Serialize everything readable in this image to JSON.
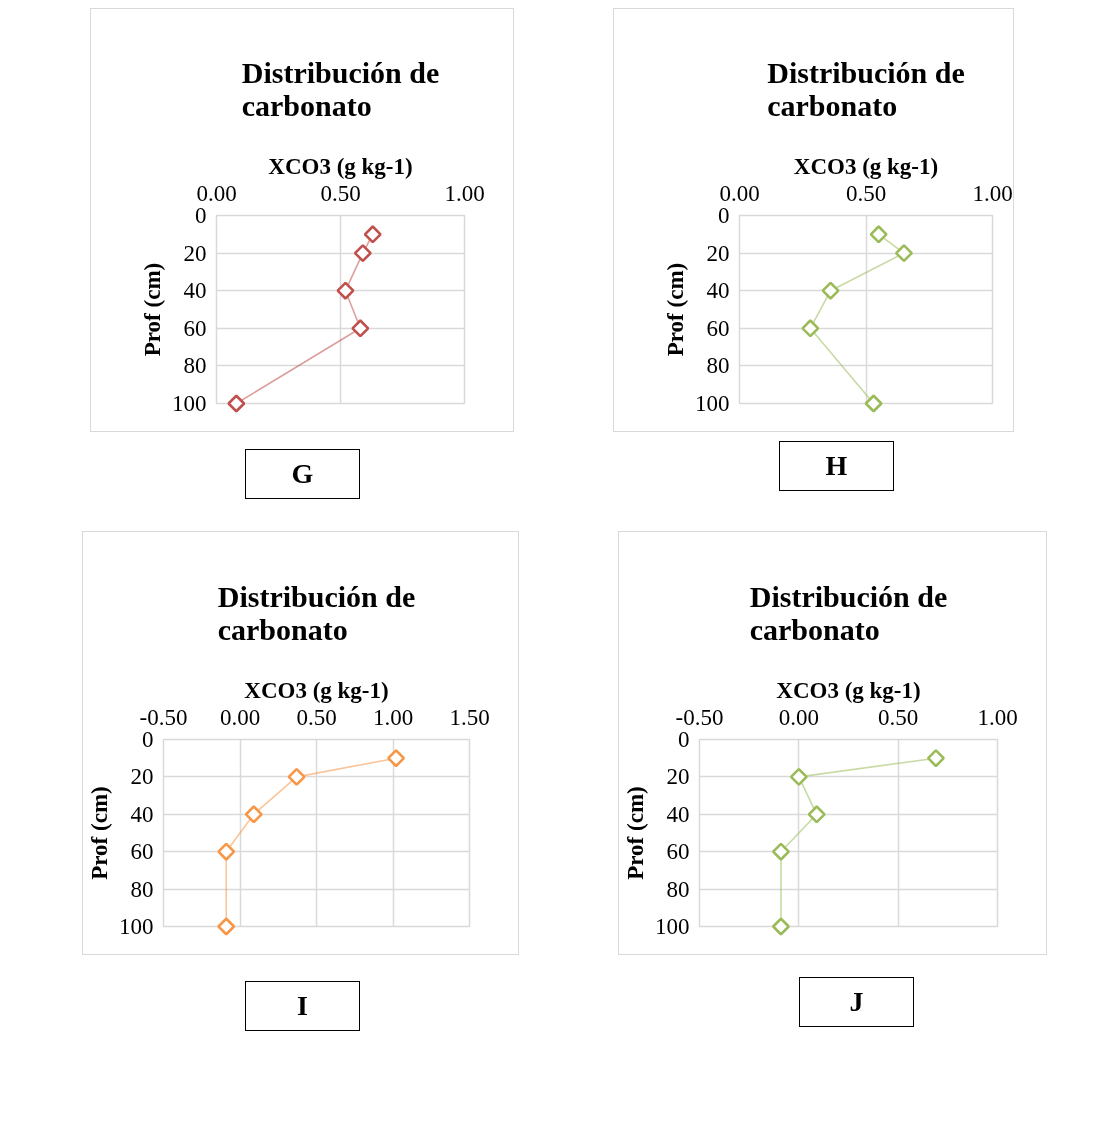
{
  "chart_data": [
    {
      "type": "line",
      "title": "Distribución de carbonato",
      "xlabel": "XCO3 (g kg-1)",
      "ylabel": "Prof (cm)",
      "x": [
        0.63,
        0.59,
        0.52,
        0.58,
        0.08
      ],
      "values": [
        10,
        20,
        40,
        60,
        100
      ],
      "color": "#c0504d",
      "xlim": [
        0,
        1
      ],
      "xticks": [
        {
          "value": 0,
          "label": "0.00"
        },
        {
          "value": 0.5,
          "label": "0.50"
        },
        {
          "value": 1,
          "label": "1.00"
        }
      ],
      "ylim": [
        100,
        0
      ],
      "yticks": [
        0,
        20,
        40,
        60,
        80,
        100
      ],
      "grid": true,
      "marker": "diamond",
      "annotations": [
        "G"
      ]
    },
    {
      "type": "line",
      "title": "Distribución de carbonato",
      "xlabel": "XCO3 (g kg-1)",
      "ylabel": "Prof (cm)",
      "x": [
        0.55,
        0.65,
        0.36,
        0.28,
        0.53
      ],
      "values": [
        10,
        20,
        40,
        60,
        100
      ],
      "color": "#9bbb59",
      "xlim": [
        0,
        1
      ],
      "xticks": [
        {
          "value": 0,
          "label": "0.00"
        },
        {
          "value": 0.5,
          "label": "0.50"
        },
        {
          "value": 1,
          "label": "1.00"
        }
      ],
      "ylim": [
        100,
        0
      ],
      "yticks": [
        0,
        20,
        40,
        60,
        80,
        100
      ],
      "grid": true,
      "marker": "diamond",
      "annotations": [
        "H"
      ]
    },
    {
      "type": "line",
      "title": "Distribución de carbonato",
      "xlabel": "XCO3 (g kg-1)",
      "ylabel": "Prof (cm)",
      "x": [
        1.02,
        0.37,
        0.09,
        -0.09,
        -0.09
      ],
      "values": [
        10,
        20,
        40,
        60,
        100
      ],
      "color": "#f79646",
      "xlim": [
        -0.5,
        1.5
      ],
      "xticks": [
        {
          "value": -0.5,
          "label": "-0.50"
        },
        {
          "value": 0,
          "label": "0.00"
        },
        {
          "value": 0.5,
          "label": "0.50"
        },
        {
          "value": 1,
          "label": "1.00"
        },
        {
          "value": 1.5,
          "label": "1.50"
        }
      ],
      "ylim": [
        100,
        0
      ],
      "yticks": [
        0,
        20,
        40,
        60,
        80,
        100
      ],
      "grid": true,
      "marker": "diamond",
      "annotations": [
        "I"
      ]
    },
    {
      "type": "line",
      "title": "Distribución de carbonato",
      "xlabel": "XCO3 (g kg-1)",
      "ylabel": "Prof (cm)",
      "x": [
        0.69,
        0.0,
        0.09,
        -0.09,
        -0.09
      ],
      "values": [
        10,
        20,
        40,
        60,
        100
      ],
      "color": "#9bbb59",
      "xlim": [
        -0.5,
        1
      ],
      "xticks": [
        {
          "value": -0.5,
          "label": "-0.50"
        },
        {
          "value": 0,
          "label": "0.00"
        },
        {
          "value": 0.5,
          "label": "0.50"
        },
        {
          "value": 1,
          "label": "1.00"
        }
      ],
      "ylim": [
        100,
        0
      ],
      "yticks": [
        0,
        20,
        40,
        60,
        80,
        100
      ],
      "grid": true,
      "marker": "diamond",
      "annotations": [
        "J"
      ]
    }
  ]
}
